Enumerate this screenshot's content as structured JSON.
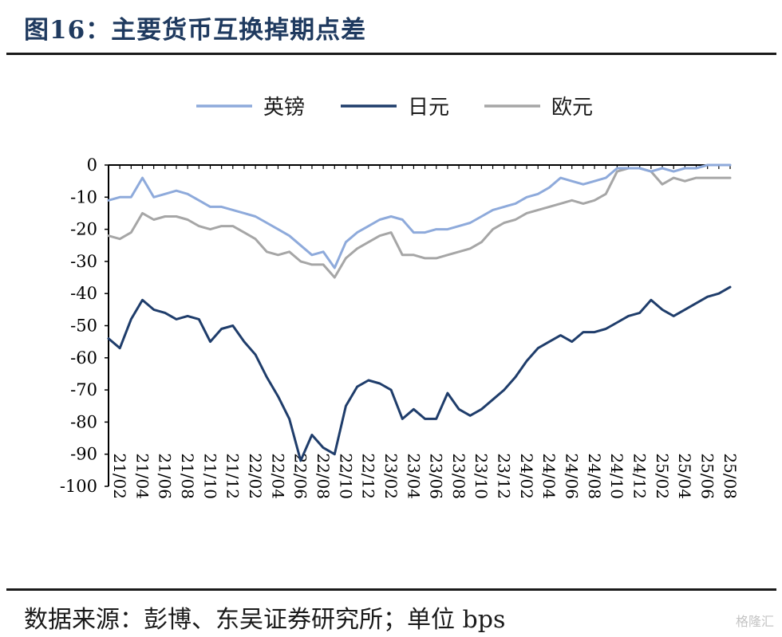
{
  "header": {
    "title": "图16：主要货币互换掉期点差"
  },
  "footer": {
    "source": "数据来源：彭博、东吴证券研究所；单位 bps",
    "watermark": "格隆汇"
  },
  "colors": {
    "gbp": "#8EAADB",
    "jpy": "#1F3D6B",
    "eur": "#A6A6A6"
  },
  "chart_data": {
    "type": "line",
    "title": "",
    "xlabel": "",
    "ylabel": "",
    "ylim": [
      -100,
      0
    ],
    "yticks": [
      0,
      -10,
      -20,
      -30,
      -40,
      -50,
      -60,
      -70,
      -80,
      -90,
      -100
    ],
    "x_range": [
      "2021-02",
      "2025-09"
    ],
    "xtick_labels": [
      "21/02",
      "21/04",
      "21/06",
      "21/08",
      "21/10",
      "21/12",
      "22/02",
      "22/04",
      "22/06",
      "22/08",
      "22/10",
      "22/12",
      "23/02",
      "23/04",
      "23/06",
      "23/08",
      "23/10",
      "23/12",
      "24/02",
      "24/04",
      "24/06",
      "24/08",
      "24/10",
      "24/12",
      "25/02",
      "25/04",
      "25/06",
      "25/08"
    ],
    "legend_position": "top-center",
    "grid": false,
    "series": [
      {
        "name": "英镑",
        "x": [
          "2021-02",
          "2021-03",
          "2021-04",
          "2021-05",
          "2021-06",
          "2021-07",
          "2021-08",
          "2021-09",
          "2021-10",
          "2021-11",
          "2021-12",
          "2022-01",
          "2022-02",
          "2022-03",
          "2022-04",
          "2022-05",
          "2022-06",
          "2022-07",
          "2022-08",
          "2022-09",
          "2022-10",
          "2022-11",
          "2022-12",
          "2023-01",
          "2023-02",
          "2023-03",
          "2023-04",
          "2023-05",
          "2023-06",
          "2023-07",
          "2023-08",
          "2023-09",
          "2023-10",
          "2023-11",
          "2023-12",
          "2024-01",
          "2024-02",
          "2024-03",
          "2024-04",
          "2024-05",
          "2024-06",
          "2024-07",
          "2024-08",
          "2024-09",
          "2024-10",
          "2024-11",
          "2024-12",
          "2025-01",
          "2025-02",
          "2025-03",
          "2025-04",
          "2025-05",
          "2025-06",
          "2025-07",
          "2025-08",
          "2025-09"
        ],
        "values": [
          -11,
          -10,
          -10,
          -4,
          -10,
          -9,
          -8,
          -9,
          -11,
          -13,
          -13,
          -14,
          -15,
          -16,
          -18,
          -20,
          -22,
          -25,
          -28,
          -27,
          -32,
          -24,
          -21,
          -19,
          -17,
          -16,
          -17,
          -21,
          -21,
          -20,
          -20,
          -19,
          -18,
          -16,
          -14,
          -13,
          -12,
          -10,
          -9,
          -7,
          -4,
          -5,
          -6,
          -5,
          -4,
          -1,
          -1,
          -1,
          -2,
          -1,
          -2,
          -1,
          -1,
          0,
          0,
          0
        ]
      },
      {
        "name": "日元",
        "x": [
          "2021-02",
          "2021-03",
          "2021-04",
          "2021-05",
          "2021-06",
          "2021-07",
          "2021-08",
          "2021-09",
          "2021-10",
          "2021-11",
          "2021-12",
          "2022-01",
          "2022-02",
          "2022-03",
          "2022-04",
          "2022-05",
          "2022-06",
          "2022-07",
          "2022-08",
          "2022-09",
          "2022-10",
          "2022-11",
          "2022-12",
          "2023-01",
          "2023-02",
          "2023-03",
          "2023-04",
          "2023-05",
          "2023-06",
          "2023-07",
          "2023-08",
          "2023-09",
          "2023-10",
          "2023-11",
          "2023-12",
          "2024-01",
          "2024-02",
          "2024-03",
          "2024-04",
          "2024-05",
          "2024-06",
          "2024-07",
          "2024-08",
          "2024-09",
          "2024-10",
          "2024-11",
          "2024-12",
          "2025-01",
          "2025-02",
          "2025-03",
          "2025-04",
          "2025-05",
          "2025-06",
          "2025-07",
          "2025-08",
          "2025-09"
        ],
        "values": [
          -54,
          -57,
          -48,
          -42,
          -45,
          -46,
          -48,
          -47,
          -48,
          -55,
          -51,
          -50,
          -55,
          -59,
          -66,
          -72,
          -79,
          -92,
          -84,
          -88,
          -90,
          -75,
          -69,
          -67,
          -68,
          -70,
          -79,
          -76,
          -79,
          -79,
          -71,
          -76,
          -78,
          -76,
          -73,
          -70,
          -66,
          -61,
          -57,
          -55,
          -53,
          -55,
          -52,
          -52,
          -51,
          -49,
          -47,
          -46,
          -42,
          -45,
          -47,
          -45,
          -43,
          -41,
          -40,
          -38
        ]
      },
      {
        "name": "欧元",
        "x": [
          "2021-02",
          "2021-03",
          "2021-04",
          "2021-05",
          "2021-06",
          "2021-07",
          "2021-08",
          "2021-09",
          "2021-10",
          "2021-11",
          "2021-12",
          "2022-01",
          "2022-02",
          "2022-03",
          "2022-04",
          "2022-05",
          "2022-06",
          "2022-07",
          "2022-08",
          "2022-09",
          "2022-10",
          "2022-11",
          "2022-12",
          "2023-01",
          "2023-02",
          "2023-03",
          "2023-04",
          "2023-05",
          "2023-06",
          "2023-07",
          "2023-08",
          "2023-09",
          "2023-10",
          "2023-11",
          "2023-12",
          "2024-01",
          "2024-02",
          "2024-03",
          "2024-04",
          "2024-05",
          "2024-06",
          "2024-07",
          "2024-08",
          "2024-09",
          "2024-10",
          "2024-11",
          "2024-12",
          "2025-01",
          "2025-02",
          "2025-03",
          "2025-04",
          "2025-05",
          "2025-06",
          "2025-07",
          "2025-08",
          "2025-09"
        ],
        "values": [
          -22,
          -23,
          -21,
          -15,
          -17,
          -16,
          -16,
          -17,
          -19,
          -20,
          -19,
          -19,
          -21,
          -23,
          -27,
          -28,
          -27,
          -30,
          -31,
          -31,
          -35,
          -29,
          -26,
          -24,
          -22,
          -21,
          -28,
          -28,
          -29,
          -29,
          -28,
          -27,
          -26,
          -24,
          -20,
          -18,
          -17,
          -15,
          -14,
          -13,
          -12,
          -11,
          -12,
          -11,
          -9,
          -2,
          -1,
          -1,
          -2,
          -6,
          -4,
          -5,
          -4,
          -4,
          -4,
          -4
        ]
      }
    ]
  }
}
